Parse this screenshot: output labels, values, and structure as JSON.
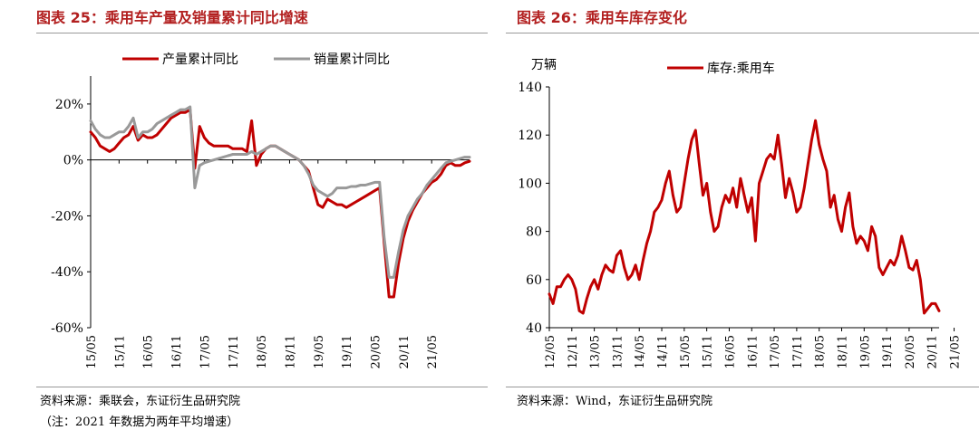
{
  "left": {
    "figure_title": "图表 25：乘用车产量及销量累计同比增速",
    "source": "资料来源：乘联会，东证衍生品研究院",
    "note": "（注：2021 年数据为两年平均增速）"
  },
  "right": {
    "figure_title": "图表 26：乘用车库存变化",
    "source": "资料来源：Wind，东证衍生品研究院"
  },
  "chart_data": [
    {
      "type": "line",
      "title": "",
      "ylim": [
        -60,
        30
      ],
      "yticks": [
        20,
        0,
        -20,
        -40,
        -60
      ],
      "ytick_labels": [
        "20%",
        "0%",
        "-20%",
        "-40%",
        "-60%"
      ],
      "x_start": "2015-05",
      "xticks": [
        "15/05",
        "15/11",
        "16/05",
        "16/11",
        "17/05",
        "17/11",
        "18/05",
        "18/11",
        "19/05",
        "19/11",
        "20/05",
        "20/11",
        "21/05"
      ],
      "legend_position": "top",
      "series": [
        {
          "name": "产量累计同比",
          "color": "#c00000",
          "values": [
            10,
            8,
            5,
            4,
            3,
            4,
            6,
            8,
            9,
            12,
            7,
            9,
            8,
            8,
            9,
            11,
            13,
            15,
            16,
            17,
            17,
            18,
            -3,
            12,
            8,
            6,
            5,
            5,
            5,
            5,
            4,
            4,
            4,
            3,
            14,
            -2,
            2,
            4,
            5,
            5,
            4,
            3,
            2,
            1,
            0,
            -2,
            -4,
            -10,
            -16,
            -17,
            -14,
            -15,
            -16,
            -16,
            -17,
            -16,
            -15,
            -14,
            -13,
            -12,
            -11,
            -10,
            -30,
            -49,
            -49,
            -37,
            -28,
            -22,
            -18,
            -15,
            -12,
            -10,
            -8,
            -7,
            -5,
            -2,
            -1,
            -2,
            -2,
            -1,
            -0.5
          ]
        },
        {
          "name": "销量累计同比",
          "color": "#999999",
          "values": [
            14,
            11,
            9,
            8,
            8,
            9,
            10,
            10,
            12,
            15,
            8,
            10,
            10,
            11,
            13,
            14,
            15,
            16,
            17,
            18,
            18,
            19,
            -10,
            -2,
            -1,
            -0.5,
            0,
            0.5,
            1,
            1.5,
            2,
            2,
            2,
            2,
            3,
            2,
            3,
            4,
            5,
            5,
            4,
            3,
            2,
            1,
            0,
            -2,
            -5,
            -9,
            -11,
            -12,
            -13,
            -12,
            -10,
            -10,
            -10,
            -9.5,
            -9.5,
            -9,
            -9,
            -8.5,
            -8,
            -8,
            -28,
            -42,
            -42,
            -33,
            -25,
            -20,
            -17,
            -14,
            -12,
            -9,
            -7,
            -5,
            -3,
            -1,
            -0.5,
            0,
            0.5,
            1,
            1
          ]
        }
      ]
    },
    {
      "type": "line",
      "title": "",
      "ylabel": "万辆",
      "ylim": [
        40,
        140
      ],
      "yticks": [
        140,
        120,
        100,
        80,
        60,
        40
      ],
      "x_start": "2012-05",
      "xticks": [
        "12/05",
        "12/11",
        "13/05",
        "13/11",
        "14/05",
        "14/11",
        "15/05",
        "15/11",
        "16/05",
        "16/11",
        "17/05",
        "17/11",
        "18/05",
        "18/11",
        "19/05",
        "19/11",
        "20/05",
        "20/11",
        "21/05"
      ],
      "legend_position": "top",
      "series": [
        {
          "name": "库存:乘用车",
          "color": "#c00000",
          "values": [
            54,
            50,
            57,
            57,
            60,
            62,
            60,
            56,
            47,
            46,
            52,
            57,
            60,
            56,
            62,
            66,
            64,
            63,
            70,
            72,
            65,
            60,
            62,
            66,
            60,
            68,
            75,
            80,
            88,
            90,
            93,
            100,
            105,
            95,
            88,
            90,
            100,
            110,
            118,
            122,
            108,
            95,
            100,
            88,
            80,
            82,
            90,
            95,
            92,
            98,
            90,
            102,
            95,
            88,
            94,
            76,
            100,
            105,
            110,
            112,
            110,
            120,
            108,
            94,
            102,
            96,
            88,
            90,
            98,
            108,
            118,
            126,
            116,
            110,
            105,
            90,
            95,
            85,
            80,
            90,
            96,
            82,
            75,
            78,
            76,
            72,
            82,
            78,
            65,
            62,
            65,
            68,
            66,
            70,
            78,
            72,
            65,
            64,
            68,
            60,
            46,
            48,
            50,
            50,
            47
          ]
        }
      ]
    }
  ]
}
